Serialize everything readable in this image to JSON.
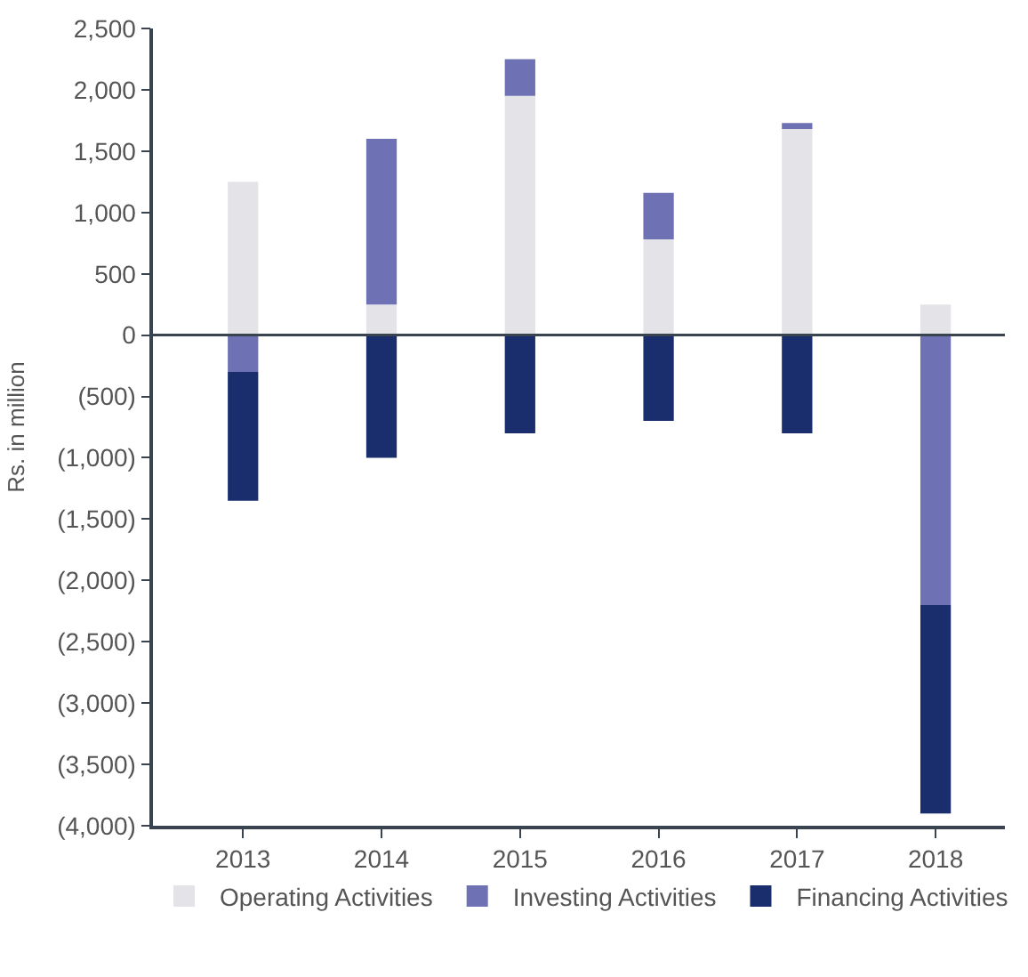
{
  "chart_data": {
    "type": "bar",
    "stacked": true,
    "ylabel": "Rs. in million",
    "categories": [
      "2013",
      "2014",
      "2015",
      "2016",
      "2017",
      "2018"
    ],
    "series": [
      {
        "name": "Operating Activities",
        "color": "#e4e4e8",
        "values": [
          1250,
          250,
          1950,
          780,
          1680,
          250
        ]
      },
      {
        "name": "Investing Activities",
        "color": "#6e72b4",
        "values": [
          -300,
          1350,
          300,
          380,
          50,
          -2200
        ]
      },
      {
        "name": "Financing Activities",
        "color": "#1a2e6e",
        "values": [
          -1050,
          -1000,
          -800,
          -700,
          -800,
          -1700
        ]
      }
    ],
    "ylim": [
      -4000,
      2500
    ],
    "yticks": [
      {
        "value": -4000,
        "label": "(4,000)"
      },
      {
        "value": -3500,
        "label": "(3,500)"
      },
      {
        "value": -3000,
        "label": "(3,000)"
      },
      {
        "value": -2500,
        "label": "(2,500)"
      },
      {
        "value": -2000,
        "label": "(2,000)"
      },
      {
        "value": -1500,
        "label": "(1,500)"
      },
      {
        "value": -1000,
        "label": "(1,000)"
      },
      {
        "value": -500,
        "label": "(500)"
      },
      {
        "value": 0,
        "label": "0"
      },
      {
        "value": 500,
        "label": "500"
      },
      {
        "value": 1000,
        "label": "1,000"
      },
      {
        "value": 1500,
        "label": "1,500"
      },
      {
        "value": 2000,
        "label": "2,000"
      },
      {
        "value": 2500,
        "label": "2,500"
      }
    ],
    "ref_lines": [
      {
        "axis": "y",
        "value": 0,
        "color": "#3a4450"
      }
    ],
    "legend": "bottom"
  }
}
